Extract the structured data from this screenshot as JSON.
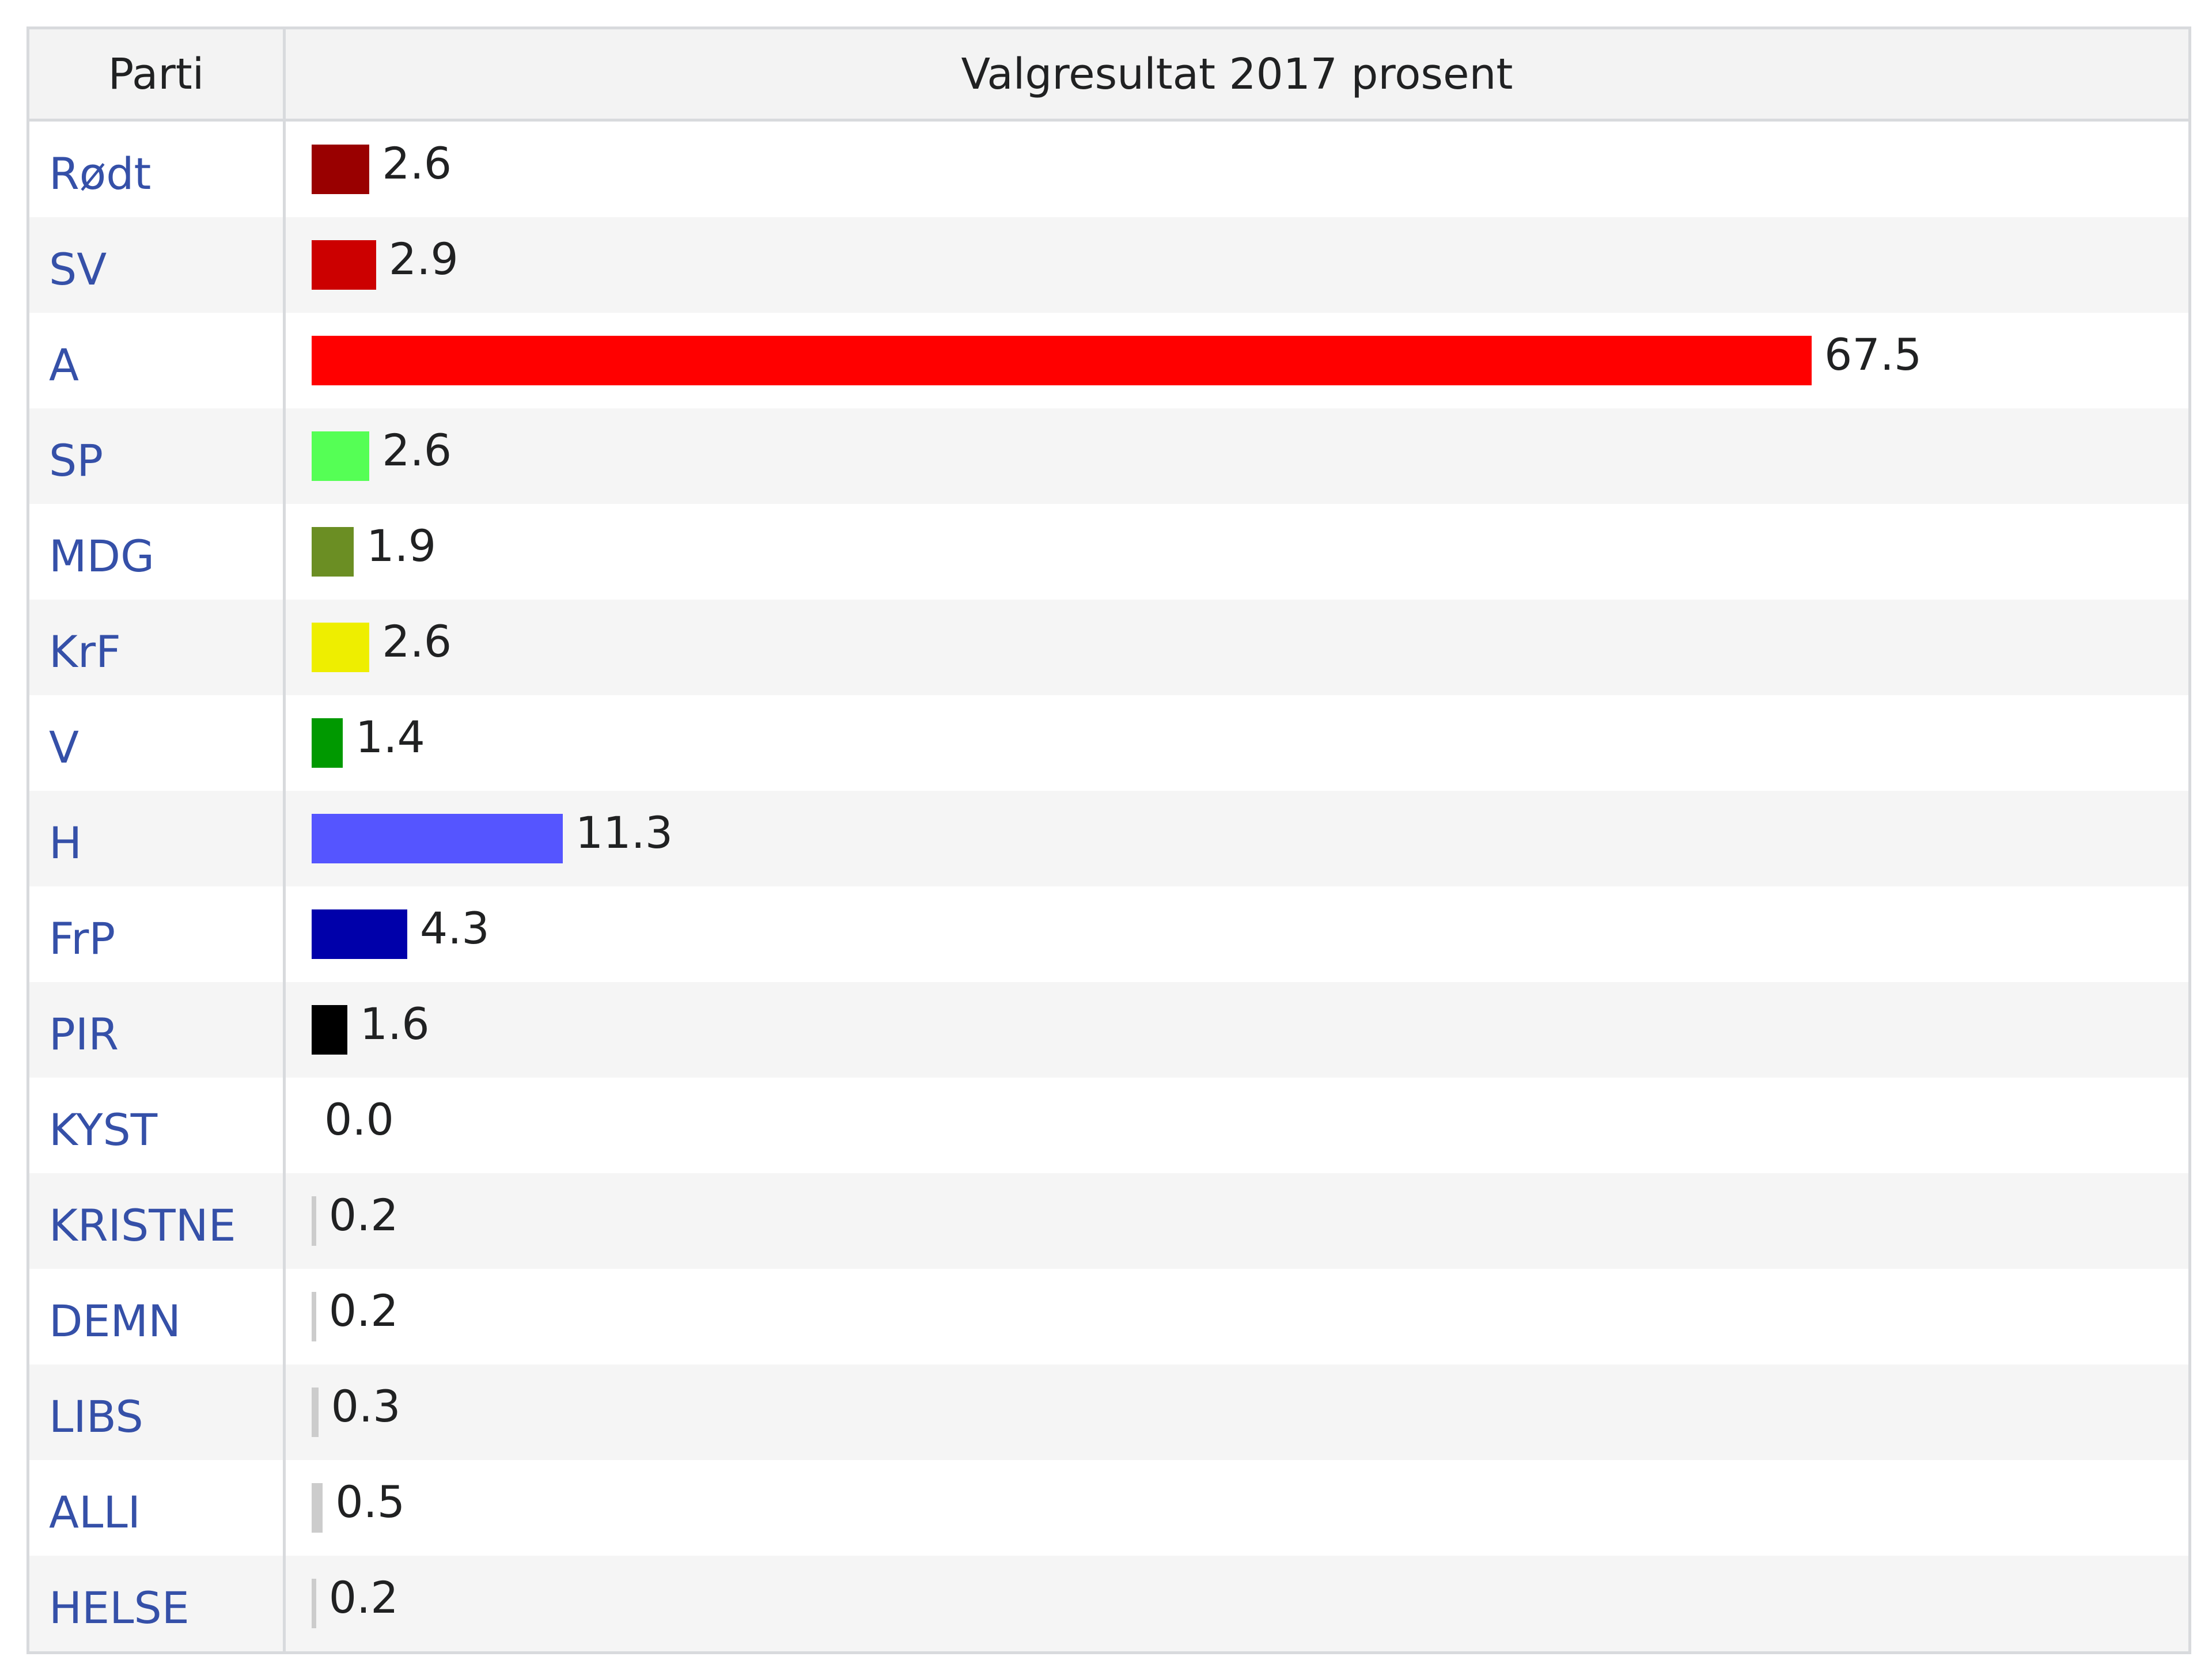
{
  "table": {
    "header_party": "Parti",
    "header_value": "Valgresultat 2017 prosent"
  },
  "chart_data": {
    "type": "bar",
    "orientation": "horizontal",
    "title": "Valgresultat 2017 prosent",
    "categories": [
      "Rødt",
      "SV",
      "A",
      "SP",
      "MDG",
      "KrF",
      "V",
      "H",
      "FrP",
      "PIR",
      "KYST",
      "KRISTNE",
      "DEMN",
      "LIBS",
      "ALLI",
      "HELSE"
    ],
    "values": [
      2.6,
      2.9,
      67.5,
      2.6,
      1.9,
      2.6,
      1.4,
      11.3,
      4.3,
      1.6,
      0.0,
      0.2,
      0.2,
      0.3,
      0.5,
      0.2
    ],
    "value_labels": [
      "2.6",
      "2.9",
      "67.5",
      "2.6",
      "1.9",
      "2.6",
      "1.4",
      "11.3",
      "4.3",
      "1.6",
      "0.0",
      "0.2",
      "0.2",
      "0.3",
      "0.5",
      "0.2"
    ],
    "colors": [
      "#990000",
      "#cc0000",
      "#ff0000",
      "#55ff55",
      "#6b8e23",
      "#eeee00",
      "#009900",
      "#5555ff",
      "#0000aa",
      "#000000",
      "#cccccc",
      "#cccccc",
      "#cccccc",
      "#cccccc",
      "#cccccc",
      "#cccccc"
    ],
    "xlim": [
      0,
      100
    ],
    "grid": false,
    "legend": "none"
  }
}
